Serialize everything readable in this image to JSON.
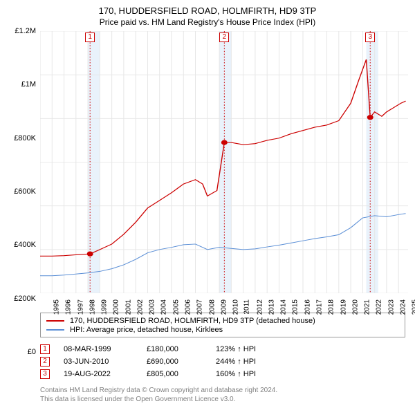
{
  "title": "170, HUDDERSFIELD ROAD, HOLMFIRTH, HD9 3TP",
  "subtitle": "Price paid vs. HM Land Registry's House Price Index (HPI)",
  "chart": {
    "type": "line",
    "background_color": "#ffffff",
    "grid_color": "#e6e6e6",
    "shaded_band_color": "#e9f2fb",
    "marker_dash_color": "#cc0000",
    "yaxis": {
      "min": 0,
      "max": 1200000,
      "tick_step": 200000,
      "ticks": [
        "£0",
        "£200K",
        "£400K",
        "£600K",
        "£800K",
        "£1M",
        "£1.2M"
      ],
      "label_fontsize": 11
    },
    "xaxis": {
      "min": 1995,
      "max": 2025.8,
      "ticks": [
        1995,
        1996,
        1997,
        1998,
        1999,
        2000,
        2001,
        2002,
        2003,
        2004,
        2005,
        2006,
        2007,
        2008,
        2009,
        2010,
        2011,
        2012,
        2013,
        2014,
        2015,
        2016,
        2017,
        2018,
        2019,
        2020,
        2021,
        2022,
        2023,
        2024,
        2025
      ],
      "label_fontsize": 10
    },
    "series": [
      {
        "id": "property",
        "label": "170, HUDDERSFIELD ROAD, HOLMFIRTH, HD9 3TP (detached house)",
        "color": "#cc0000",
        "line_width": 1.4,
        "points": [
          [
            1995.0,
            170000
          ],
          [
            1996.0,
            170000
          ],
          [
            1997.0,
            172000
          ],
          [
            1998.0,
            176000
          ],
          [
            1999.18,
            180000
          ],
          [
            2000.0,
            200000
          ],
          [
            2001.0,
            225000
          ],
          [
            2002.0,
            270000
          ],
          [
            2003.0,
            325000
          ],
          [
            2004.0,
            390000
          ],
          [
            2005.0,
            425000
          ],
          [
            2006.0,
            460000
          ],
          [
            2007.0,
            500000
          ],
          [
            2008.0,
            520000
          ],
          [
            2008.6,
            500000
          ],
          [
            2009.0,
            445000
          ],
          [
            2009.8,
            470000
          ],
          [
            2010.42,
            690000
          ],
          [
            2011.0,
            690000
          ],
          [
            2012.0,
            680000
          ],
          [
            2013.0,
            685000
          ],
          [
            2014.0,
            700000
          ],
          [
            2015.0,
            710000
          ],
          [
            2016.0,
            730000
          ],
          [
            2017.0,
            745000
          ],
          [
            2018.0,
            760000
          ],
          [
            2019.0,
            770000
          ],
          [
            2020.0,
            790000
          ],
          [
            2021.0,
            870000
          ],
          [
            2021.7,
            980000
          ],
          [
            2022.3,
            1070000
          ],
          [
            2022.63,
            805000
          ],
          [
            2023.0,
            830000
          ],
          [
            2023.6,
            810000
          ],
          [
            2024.0,
            830000
          ],
          [
            2024.6,
            850000
          ],
          [
            2025.2,
            870000
          ],
          [
            2025.6,
            880000
          ]
        ],
        "sale_markers": [
          {
            "x": 1999.18,
            "y": 180000
          },
          {
            "x": 2010.42,
            "y": 690000
          },
          {
            "x": 2022.63,
            "y": 805000
          }
        ]
      },
      {
        "id": "hpi",
        "label": "HPI: Average price, detached house, Kirklees",
        "color": "#5b8fd6",
        "line_width": 1.2,
        "points": [
          [
            1995.0,
            80000
          ],
          [
            1996.0,
            80000
          ],
          [
            1997.0,
            83000
          ],
          [
            1998.0,
            88000
          ],
          [
            1999.0,
            93000
          ],
          [
            2000.0,
            100000
          ],
          [
            2001.0,
            112000
          ],
          [
            2002.0,
            130000
          ],
          [
            2003.0,
            155000
          ],
          [
            2004.0,
            185000
          ],
          [
            2005.0,
            200000
          ],
          [
            2006.0,
            210000
          ],
          [
            2007.0,
            222000
          ],
          [
            2008.0,
            225000
          ],
          [
            2009.0,
            200000
          ],
          [
            2010.0,
            210000
          ],
          [
            2011.0,
            205000
          ],
          [
            2012.0,
            200000
          ],
          [
            2013.0,
            203000
          ],
          [
            2014.0,
            212000
          ],
          [
            2015.0,
            220000
          ],
          [
            2016.0,
            230000
          ],
          [
            2017.0,
            240000
          ],
          [
            2018.0,
            250000
          ],
          [
            2019.0,
            258000
          ],
          [
            2020.0,
            268000
          ],
          [
            2021.0,
            300000
          ],
          [
            2022.0,
            345000
          ],
          [
            2023.0,
            355000
          ],
          [
            2024.0,
            350000
          ],
          [
            2025.0,
            360000
          ],
          [
            2025.6,
            365000
          ]
        ]
      }
    ],
    "shaded_bands": [
      {
        "from": 1999.0,
        "to": 2000.0
      },
      {
        "from": 2010.0,
        "to": 2011.0
      },
      {
        "from": 2022.3,
        "to": 2023.3
      }
    ],
    "event_markers": [
      {
        "num": "1",
        "x": 1999.18
      },
      {
        "num": "2",
        "x": 2010.42
      },
      {
        "num": "3",
        "x": 2022.63
      }
    ]
  },
  "legend": {
    "border_color": "#999999",
    "items": [
      {
        "color": "#cc0000",
        "label": "170, HUDDERSFIELD ROAD, HOLMFIRTH, HD9 3TP (detached house)"
      },
      {
        "color": "#5b8fd6",
        "label": "HPI: Average price, detached house, Kirklees"
      }
    ]
  },
  "events": [
    {
      "num": "1",
      "date": "08-MAR-1999",
      "price": "£180,000",
      "hpi": "123% ↑ HPI"
    },
    {
      "num": "2",
      "date": "03-JUN-2010",
      "price": "£690,000",
      "hpi": "244% ↑ HPI"
    },
    {
      "num": "3",
      "date": "19-AUG-2022",
      "price": "£805,000",
      "hpi": "160% ↑ HPI"
    }
  ],
  "footer_line1": "Contains HM Land Registry data © Crown copyright and database right 2024.",
  "footer_line2": "This data is licensed under the Open Government Licence v3.0.",
  "colors": {
    "marker_border": "#cc0000",
    "footer_text": "#808080"
  }
}
